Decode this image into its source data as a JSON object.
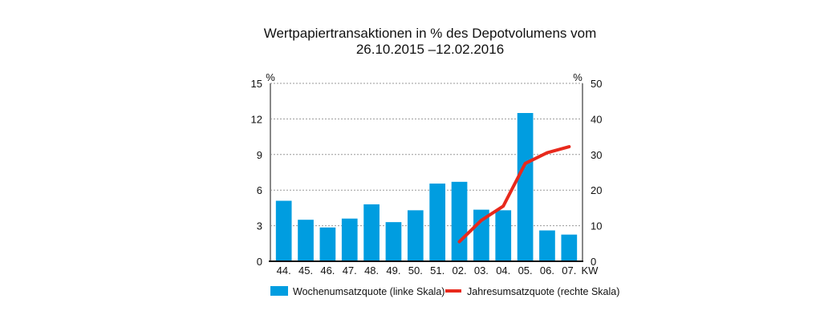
{
  "chart_data": {
    "type": "bar",
    "title_line1": "Wertpapiertransaktionen in % des Depotvolumens vom",
    "title_line2": "26.10.2015 –12.02.2016",
    "categories": [
      "44.",
      "45.",
      "46.",
      "47.",
      "48.",
      "49.",
      "50.",
      "51.",
      "02.",
      "03.",
      "04.",
      "05.",
      "06.",
      "07."
    ],
    "xlabel": "KW",
    "left_axis": {
      "unit": "%",
      "ylim": [
        0,
        15
      ],
      "ticks": [
        "0",
        "3",
        "6",
        "9",
        "12",
        "15"
      ],
      "tick_values": [
        0,
        3,
        6,
        9,
        12,
        15
      ]
    },
    "right_axis": {
      "unit": "%",
      "ylim": [
        0,
        50
      ],
      "ticks": [
        "0",
        "10",
        "20",
        "30",
        "40",
        "50"
      ],
      "tick_values": [
        0,
        10,
        20,
        30,
        40,
        50
      ]
    },
    "grid": true,
    "legend_position": "bottom",
    "series": [
      {
        "name": "Wochenumsatzquote (linke Skala)",
        "type": "bar",
        "axis": "left",
        "color": "#009de0",
        "values": [
          5.1,
          3.5,
          2.85,
          3.6,
          4.8,
          3.3,
          4.3,
          6.55,
          6.7,
          4.35,
          4.3,
          12.5,
          2.6,
          2.25
        ]
      },
      {
        "name": "Jahresumsatzquote (rechte Skala)",
        "type": "line",
        "axis": "right",
        "color": "#e8291c",
        "values": [
          null,
          null,
          null,
          null,
          null,
          null,
          null,
          null,
          5.5,
          11.5,
          15.5,
          27.5,
          30.5,
          32.2
        ]
      }
    ]
  }
}
